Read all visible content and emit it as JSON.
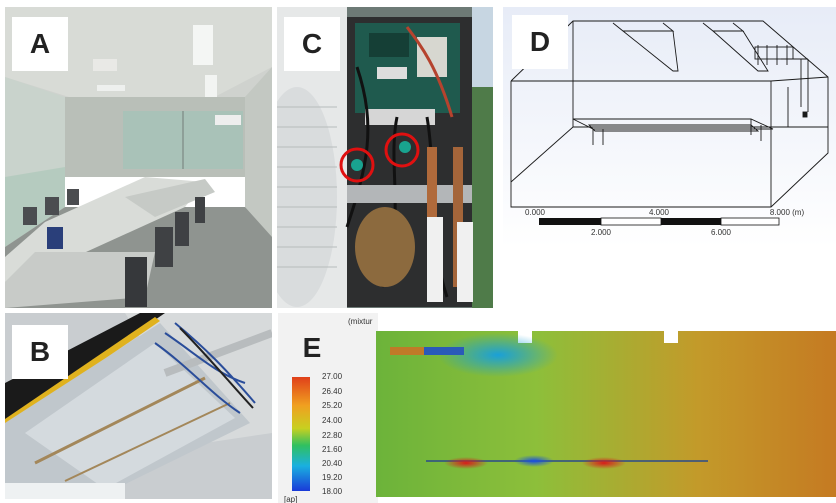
{
  "panels": {
    "a": {
      "label": "A"
    },
    "b": {
      "label": "B"
    },
    "c": {
      "label": "C"
    },
    "d": {
      "label": "D",
      "scale_top": [
        "0.000",
        "4.000",
        "8.000 (m)"
      ],
      "scale_bottom": [
        "2.000",
        "6.000"
      ]
    },
    "e": {
      "label": "E",
      "title_fragment": "(mixtur",
      "legend_values": [
        "27.00",
        "26.40",
        "25.20",
        "24.00",
        "22.80",
        "21.60",
        "20.40",
        "19.20",
        "18.00"
      ],
      "legend_unit": "[ap]"
    }
  },
  "colors": {
    "red_circle": "#e01010",
    "sim_green": "#7cb342"
  }
}
